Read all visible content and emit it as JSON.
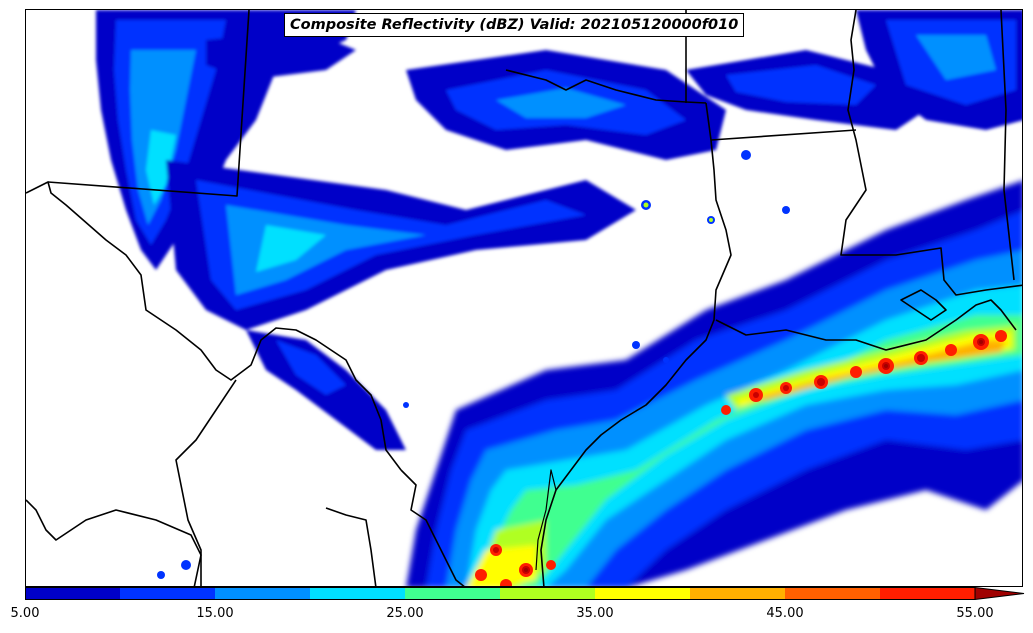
{
  "title": "Composite Reflectivity (dBZ) Valid: 202105120000f010",
  "colorbar": {
    "ticks": [
      "5.00",
      "15.00",
      "25.00",
      "35.00",
      "45.00",
      "55.00"
    ],
    "extend": "max",
    "colors": [
      "#0000c8",
      "#0033ff",
      "#0090ff",
      "#00e0ff",
      "#40ff90",
      "#b0ff20",
      "#ffff00",
      "#ffb000",
      "#ff6000",
      "#ff1e00",
      "#c80000",
      "#a00000"
    ]
  },
  "map": {
    "background": "#ffffff",
    "boundary_color": "#000000"
  }
}
